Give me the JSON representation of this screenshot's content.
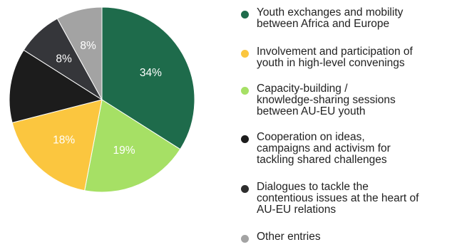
{
  "chart_data": {
    "type": "pie",
    "title": "",
    "legend_position": "right",
    "series": [
      {
        "name": "Youth exchanges and mobility between Africa and Europe",
        "value": 34,
        "label": "34%",
        "color": "#1e6b4b",
        "label_color": "#ffffff"
      },
      {
        "name": "Capacity-building / knowledge-sharing sessions between AU-EU youth",
        "value": 19,
        "label": "19%",
        "color": "#a6e065",
        "label_color": "#ffffff"
      },
      {
        "name": "Involvement and participation of youth in high-level convenings",
        "value": 18,
        "label": "18%",
        "color": "#fbc63f",
        "label_color": "#ffffff"
      },
      {
        "name": "Cooperation on ideas, campaigns and activism for tackling shared challenges",
        "value": 13,
        "label": "",
        "color": "#1c1c1c",
        "label_color": "#ffffff"
      },
      {
        "name": "Dialogues to tackle the contentious issues at the heart of AU-EU relations",
        "value": 8,
        "label": "8%",
        "color": "#35363a",
        "label_color": "#ffffff"
      },
      {
        "name": "Other entries",
        "value": 8,
        "label": "8%",
        "color": "#a3a3a3",
        "label_color": "#ffffff"
      }
    ]
  },
  "legend": [
    {
      "text": "Youth exchanges and mobility\nbetween Africa and Europe",
      "color": "#1e6b4b"
    },
    {
      "text": "Involvement and participation of\nyouth in high-level convenings",
      "color": "#fbc63f"
    },
    {
      "text": "Capacity-building /\nknowledge-sharing sessions\nbetween AU-EU youth",
      "color": "#a6e065"
    },
    {
      "text": "Cooperation on ideas,\ncampaigns and activism for\ntackling shared challenges",
      "color": "#1c1c1c"
    },
    {
      "text": "Dialogues to tackle the\ncontentious issues at the heart of\nAU-EU relations",
      "color": "#2e2e2e"
    },
    {
      "text": "Other entries",
      "color": "#a3a3a3"
    }
  ]
}
